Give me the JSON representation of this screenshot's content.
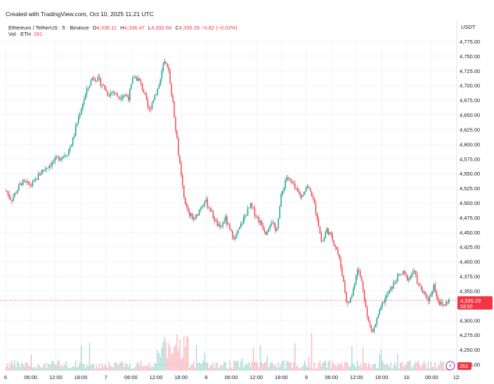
{
  "header": {
    "created": "Created with TradingView.com, Oct 10, 2025 11:21 UTC",
    "symbol": "Ethereum / TetherUS · 5 · Binance",
    "open_label": "O",
    "open": "4,336.11",
    "high_label": "H",
    "high": "4,336.47",
    "low_label": "L",
    "low": "4,332.66",
    "close_label": "C",
    "close": "4,335.29",
    "change": "−0.82 (−0.02%)",
    "vol_label": "Vol · ETH",
    "vol_value": "261",
    "currency": "USDT"
  },
  "colors": {
    "up": "#089981",
    "down": "#f23645",
    "grid": "#f0f3fa",
    "text": "#131722"
  },
  "chart_data": {
    "type": "candlestick",
    "y_ticks": [
      "4,775.00",
      "4,750.00",
      "4,725.00",
      "4,700.00",
      "4,675.00",
      "4,650.00",
      "4,625.00",
      "4,600.00",
      "4,575.00",
      "4,550.00",
      "4,525.00",
      "4,500.00",
      "4,475.00",
      "4,450.00",
      "4,425.00",
      "4,400.00",
      "4,375.00",
      "4,350.00",
      "4,325.00",
      "4,300.00",
      "4,275.00",
      "4,250.00",
      "4,225.00"
    ],
    "ylim": [
      4225,
      4775
    ],
    "x_ticks": [
      "6",
      "06:00",
      "12:00",
      "18:00",
      "7",
      "06:00",
      "12:00",
      "18:00",
      "8",
      "06:00",
      "12:00",
      "18:00",
      "9",
      "06:00",
      "12:00",
      "18:00",
      "10",
      "06:00",
      "12:"
    ],
    "last_price": "4,335.29",
    "countdown": "03:50",
    "last_volume": "261",
    "price_path": [
      {
        "t": 0,
        "p": 4520
      },
      {
        "t": 1,
        "p": 4505
      },
      {
        "t": 3,
        "p": 4535
      },
      {
        "t": 5,
        "p": 4530
      },
      {
        "t": 7,
        "p": 4555
      },
      {
        "t": 10,
        "p": 4575
      },
      {
        "t": 12,
        "p": 4585
      },
      {
        "t": 13,
        "p": 4605
      },
      {
        "t": 14,
        "p": 4640
      },
      {
        "t": 15,
        "p": 4670
      },
      {
        "t": 16,
        "p": 4695
      },
      {
        "t": 17,
        "p": 4715
      },
      {
        "t": 18,
        "p": 4710
      },
      {
        "t": 19,
        "p": 4700
      },
      {
        "t": 20,
        "p": 4685
      },
      {
        "t": 21,
        "p": 4690
      },
      {
        "t": 22,
        "p": 4680
      },
      {
        "t": 23,
        "p": 4685
      },
      {
        "t": 24,
        "p": 4680
      },
      {
        "t": 25,
        "p": 4715
      },
      {
        "t": 26,
        "p": 4710
      },
      {
        "t": 27,
        "p": 4690
      },
      {
        "t": 28,
        "p": 4655
      },
      {
        "t": 29,
        "p": 4680
      },
      {
        "t": 30,
        "p": 4700
      },
      {
        "t": 31,
        "p": 4740
      },
      {
        "t": 32,
        "p": 4720
      },
      {
        "t": 33,
        "p": 4650
      },
      {
        "t": 34,
        "p": 4570
      },
      {
        "t": 35,
        "p": 4500
      },
      {
        "t": 36,
        "p": 4480
      },
      {
        "t": 37,
        "p": 4470
      },
      {
        "t": 38,
        "p": 4490
      },
      {
        "t": 39,
        "p": 4505
      },
      {
        "t": 40,
        "p": 4490
      },
      {
        "t": 41,
        "p": 4470
      },
      {
        "t": 42,
        "p": 4455
      },
      {
        "t": 43,
        "p": 4475
      },
      {
        "t": 44,
        "p": 4450
      },
      {
        "t": 45,
        "p": 4440
      },
      {
        "t": 46,
        "p": 4460
      },
      {
        "t": 47,
        "p": 4480
      },
      {
        "t": 48,
        "p": 4495
      },
      {
        "t": 49,
        "p": 4480
      },
      {
        "t": 50,
        "p": 4465
      },
      {
        "t": 51,
        "p": 4450
      },
      {
        "t": 52,
        "p": 4470
      },
      {
        "t": 53,
        "p": 4450
      },
      {
        "t": 54,
        "p": 4510
      },
      {
        "t": 55,
        "p": 4545
      },
      {
        "t": 56,
        "p": 4535
      },
      {
        "t": 57,
        "p": 4520
      },
      {
        "t": 58,
        "p": 4510
      },
      {
        "t": 59,
        "p": 4530
      },
      {
        "t": 60,
        "p": 4515
      },
      {
        "t": 61,
        "p": 4480
      },
      {
        "t": 62,
        "p": 4430
      },
      {
        "t": 63,
        "p": 4455
      },
      {
        "t": 64,
        "p": 4440
      },
      {
        "t": 65,
        "p": 4420
      },
      {
        "t": 66,
        "p": 4380
      },
      {
        "t": 67,
        "p": 4325
      },
      {
        "t": 68,
        "p": 4345
      },
      {
        "t": 69,
        "p": 4390
      },
      {
        "t": 70,
        "p": 4360
      },
      {
        "t": 71,
        "p": 4300
      },
      {
        "t": 72,
        "p": 4280
      },
      {
        "t": 73,
        "p": 4305
      },
      {
        "t": 74,
        "p": 4330
      },
      {
        "t": 75,
        "p": 4345
      },
      {
        "t": 76,
        "p": 4360
      },
      {
        "t": 77,
        "p": 4375
      },
      {
        "t": 78,
        "p": 4380
      },
      {
        "t": 79,
        "p": 4370
      },
      {
        "t": 80,
        "p": 4385
      },
      {
        "t": 81,
        "p": 4360
      },
      {
        "t": 82,
        "p": 4345
      },
      {
        "t": 83,
        "p": 4335
      },
      {
        "t": 84,
        "p": 4360
      },
      {
        "t": 85,
        "p": 4330
      },
      {
        "t": 86,
        "p": 4325
      },
      {
        "t": 87,
        "p": 4335
      }
    ]
  }
}
